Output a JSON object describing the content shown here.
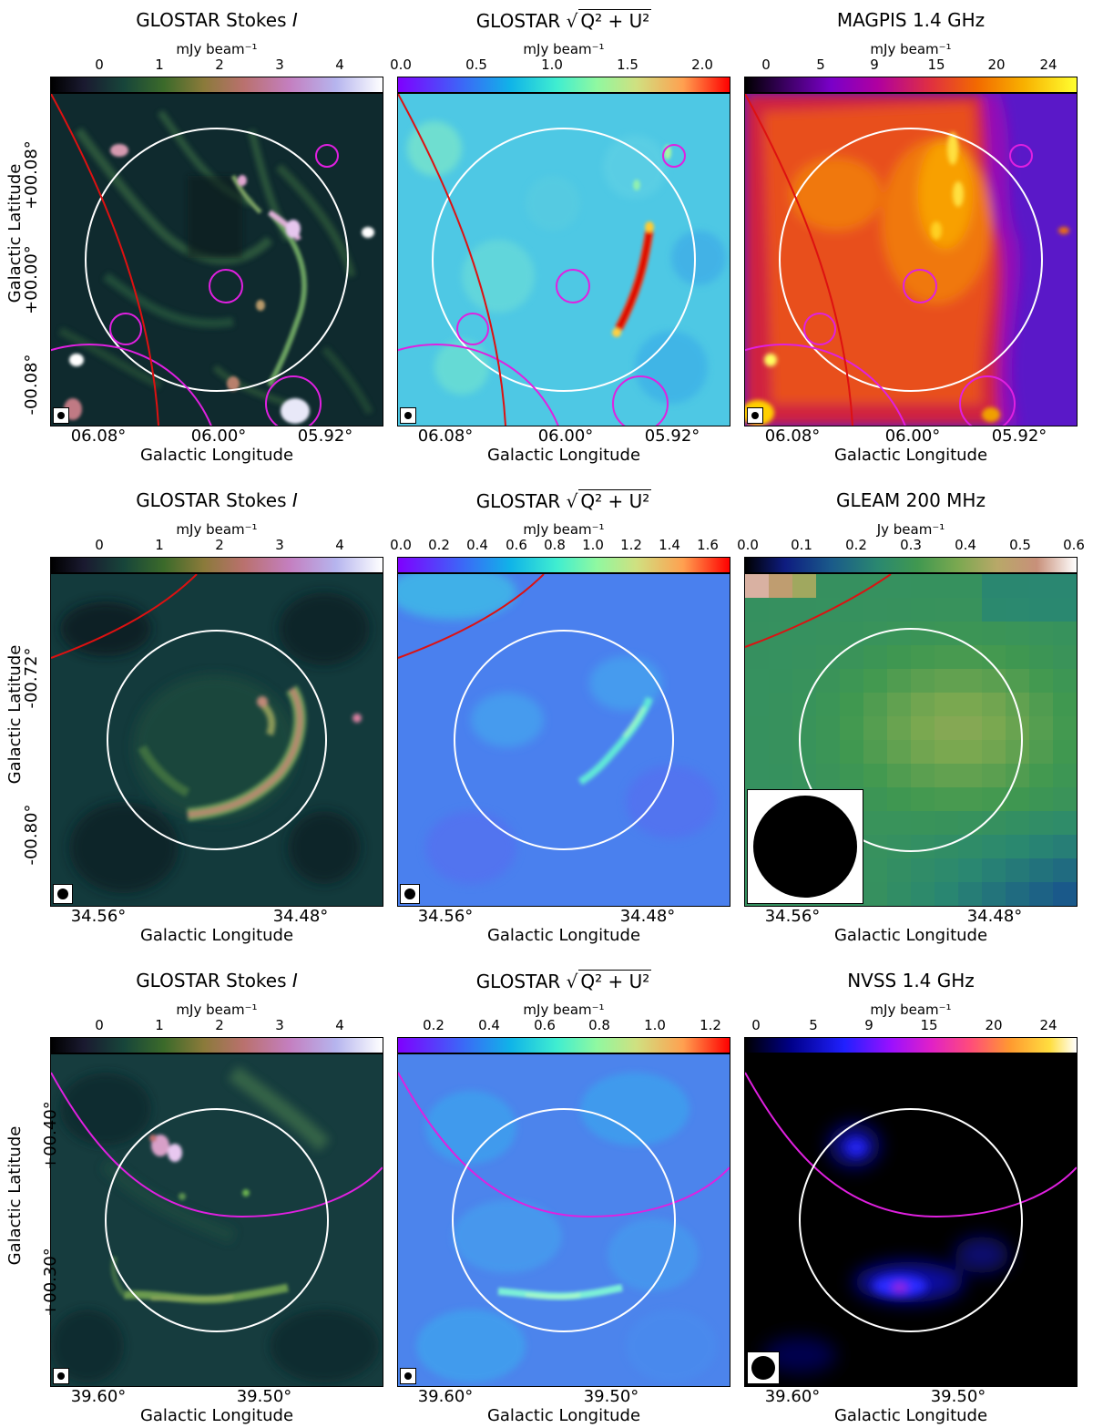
{
  "rows": [
    {
      "panels": [
        {
          "title_text": "GLOSTAR Stokes ",
          "title_italic": "I",
          "unit": "mJy beam⁻¹",
          "ticks": [
            "0",
            "1",
            "2",
            "3",
            "4"
          ],
          "colormap": "cubehelix",
          "xlabels": [
            "06.08°",
            "06.00°",
            "05.92°"
          ]
        },
        {
          "title_text": "GLOSTAR ",
          "title_sqrt": "Q² + U²",
          "unit": "mJy beam⁻¹",
          "ticks": [
            "0.0",
            "0.5",
            "1.0",
            "1.5",
            "2.0"
          ],
          "colormap": "rainbow",
          "xlabels": [
            "06.08°",
            "06.00°",
            "05.92°"
          ]
        },
        {
          "title_text": "MAGPIS 1.4 GHz",
          "unit": "mJy beam⁻¹",
          "ticks": [
            "0",
            "5",
            "9",
            "15",
            "20",
            "24"
          ],
          "colormap": "gnuplot",
          "xlabels": [
            "06.08°",
            "06.00°",
            "05.92°"
          ]
        }
      ],
      "ylabels": [
        "+00.08°",
        "+00.00°",
        "-00.08°"
      ]
    },
    {
      "panels": [
        {
          "title_text": "GLOSTAR Stokes ",
          "title_italic": "I",
          "unit": "mJy beam⁻¹",
          "ticks": [
            "0",
            "1",
            "2",
            "3",
            "4"
          ],
          "colormap": "cubehelix",
          "xlabels": [
            "34.56°",
            "34.48°"
          ]
        },
        {
          "title_text": "GLOSTAR ",
          "title_sqrt": "Q² + U²",
          "unit": "mJy beam⁻¹",
          "ticks": [
            "0.0",
            "0.2",
            "0.4",
            "0.6",
            "0.8",
            "1.0",
            "1.2",
            "1.4",
            "1.6"
          ],
          "colormap": "rainbow",
          "xlabels": [
            "34.56°",
            "34.48°"
          ]
        },
        {
          "title_text": "GLEAM 200 MHz",
          "unit": "Jy beam⁻¹",
          "ticks": [
            "0.0",
            "0.1",
            "0.2",
            "0.3",
            "0.4",
            "0.5",
            "0.6"
          ],
          "colormap": "gist_earth",
          "xlabels": [
            "34.56°",
            "34.48°"
          ]
        }
      ],
      "ylabels": [
        "-00.72°",
        "-00.80°"
      ]
    },
    {
      "panels": [
        {
          "title_text": "GLOSTAR Stokes ",
          "title_italic": "I",
          "unit": "mJy beam⁻¹",
          "ticks": [
            "0",
            "1",
            "2",
            "3",
            "4"
          ],
          "colormap": "cubehelix",
          "xlabels": [
            "39.60°",
            "39.50°"
          ]
        },
        {
          "title_text": "GLOSTAR ",
          "title_sqrt": "Q² + U²",
          "unit": "mJy beam⁻¹",
          "ticks": [
            "0.2",
            "0.4",
            "0.6",
            "0.8",
            "1.0",
            "1.2"
          ],
          "colormap": "rainbow",
          "xlabels": [
            "39.60°",
            "39.50°"
          ]
        },
        {
          "title_text": "NVSS 1.4 GHz",
          "unit": "mJy beam⁻¹",
          "ticks": [
            "0",
            "5",
            "9",
            "15",
            "20",
            "24"
          ],
          "colormap": "gnuplot2",
          "xlabels": [
            "39.60°",
            "39.50°"
          ]
        }
      ],
      "ylabels": [
        "+00.40°",
        "+00.30°"
      ]
    }
  ],
  "axis_labels": {
    "x": "Galactic Longitude",
    "y": "Galactic Latitude"
  },
  "colors": {
    "snr_circle": "#ffffff",
    "red_arc": "#dd1111",
    "magenta_region": "#e020e0"
  }
}
